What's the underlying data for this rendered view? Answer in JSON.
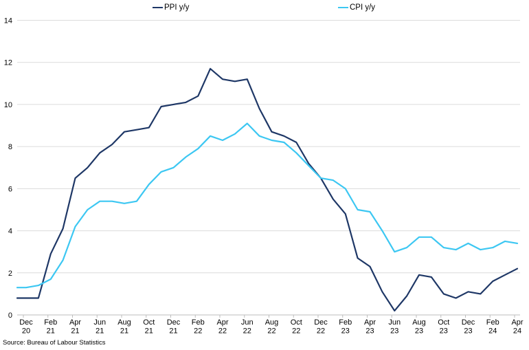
{
  "source_note": "Source: Bureau of Labour Statistics",
  "legend": {
    "position": "top",
    "items": [
      {
        "label": "PPI y/y",
        "color": "#1e3766"
      },
      {
        "label": "CPI y/y",
        "color": "#3cc7f2"
      }
    ]
  },
  "axes": {
    "y_tick_labels": [
      "0",
      "2",
      "4",
      "6",
      "8",
      "10",
      "12",
      "14"
    ],
    "gridline_color": "#dcdcdc",
    "axis_color": "#bdbdbd"
  },
  "chart_data": {
    "type": "line",
    "title": "",
    "xlabel": "",
    "ylabel": "",
    "ylim": [
      0,
      14
    ],
    "ytick_step": 2,
    "grid": "horizontal",
    "legend_position": "top",
    "x_tick_labels": [
      [
        "Dec",
        "20"
      ],
      [
        "Feb",
        "21"
      ],
      [
        "Apr",
        "21"
      ],
      [
        "Jun",
        "21"
      ],
      [
        "Aug",
        "21"
      ],
      [
        "Oct",
        "21"
      ],
      [
        "Dec",
        "21"
      ],
      [
        "Feb",
        "22"
      ],
      [
        "Apr",
        "22"
      ],
      [
        "Jun",
        "22"
      ],
      [
        "Aug",
        "22"
      ],
      [
        "Oct",
        "22"
      ],
      [
        "Dec",
        "22"
      ],
      [
        "Feb",
        "23"
      ],
      [
        "Apr",
        "23"
      ],
      [
        "Jun",
        "23"
      ],
      [
        "Aug",
        "23"
      ],
      [
        "Oct",
        "23"
      ],
      [
        "Dec",
        "23"
      ],
      [
        "Feb",
        "24"
      ],
      [
        "Apr",
        "24"
      ]
    ],
    "points_per_labelled_tick": 2,
    "series": [
      {
        "name": "PPI y/y",
        "color": "#1e3766",
        "values": [
          0.8,
          0.8,
          2.9,
          4.1,
          6.5,
          7.0,
          7.7,
          8.1,
          8.7,
          8.8,
          8.9,
          9.9,
          10.0,
          10.1,
          10.4,
          11.7,
          11.2,
          11.1,
          11.2,
          9.8,
          8.7,
          8.5,
          8.2,
          7.2,
          6.5,
          5.5,
          4.8,
          2.7,
          2.3,
          1.1,
          0.2,
          0.9,
          1.9,
          1.8,
          1.0,
          0.8,
          1.1,
          1.0,
          1.6,
          1.9,
          2.2
        ]
      },
      {
        "name": "CPI y/y",
        "color": "#3cc7f2",
        "values": [
          1.3,
          1.4,
          1.7,
          2.6,
          4.2,
          5.0,
          5.4,
          5.4,
          5.3,
          5.4,
          6.2,
          6.8,
          7.0,
          7.5,
          7.9,
          8.5,
          8.3,
          8.6,
          9.1,
          8.5,
          8.3,
          8.2,
          7.7,
          7.1,
          6.5,
          6.4,
          6.0,
          5.0,
          4.9,
          4.0,
          3.0,
          3.2,
          3.7,
          3.7,
          3.2,
          3.1,
          3.4,
          3.1,
          3.2,
          3.5,
          3.4
        ]
      }
    ]
  }
}
